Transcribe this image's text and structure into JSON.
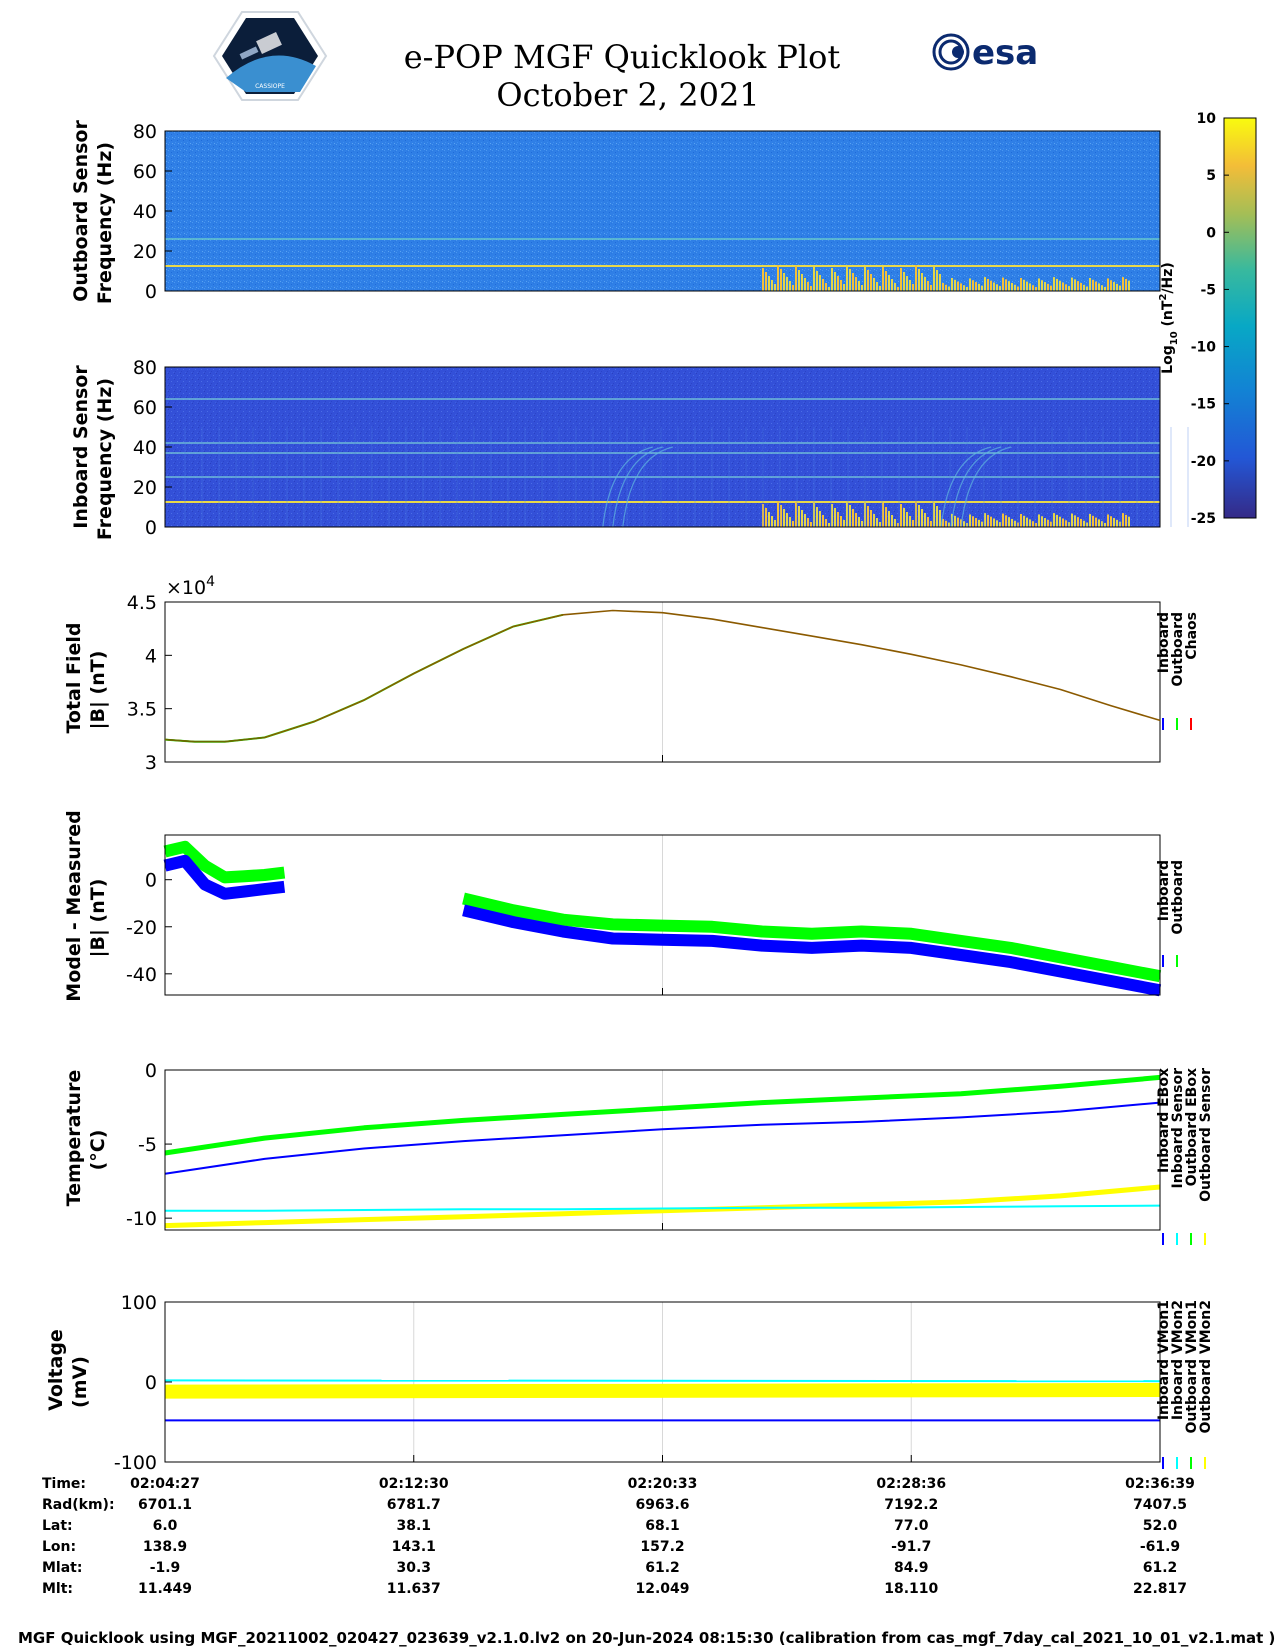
{
  "header": {
    "title_line1": "e-POP MGF Quicklook Plot",
    "title_line2": "October 2, 2021",
    "logo_left_text": "CASSIOPE",
    "logo_right_text": "esa"
  },
  "colors": {
    "blue": "#0000ff",
    "green": "#00ff00",
    "red": "#ff0000",
    "cyan": "#00ffff",
    "yellow": "#ffff00",
    "model_line": "#8b5a00",
    "spectrogram_bg_outboard": "#2f7fe6",
    "spectrogram_bg_inboard": "#3350d8",
    "parula_low": "#352a87",
    "parula_high": "#f9fb0e"
  },
  "chart_data": [
    {
      "type": "heatmap",
      "ylabel_line1": "Outboard Sensor",
      "ylabel_line2": "Frequency (Hz)",
      "ylim": [
        0,
        80
      ],
      "yticks": [
        "0",
        "20",
        "40",
        "60",
        "80"
      ],
      "persistent_lines_hz": [
        12.5,
        26
      ],
      "activity_band_x": [
        0.6,
        0.97
      ]
    },
    {
      "type": "heatmap",
      "ylabel_line1": "Inboard Sensor",
      "ylabel_line2": "Frequency (Hz)",
      "ylim": [
        0,
        80
      ],
      "yticks": [
        "0",
        "20",
        "40",
        "60",
        "80"
      ],
      "persistent_lines_hz": [
        12.5,
        25,
        37,
        42,
        64
      ],
      "activity_band_x": [
        0.6,
        0.97
      ]
    },
    {
      "type": "colorbar",
      "label": "Log",
      "label_sub": "10",
      "label_rest": " (nT",
      "label_sup": "2",
      "label_end": "/Hz)",
      "clim": [
        -25,
        10
      ],
      "ticks": [
        "10",
        "5",
        "0",
        "-5",
        "-10",
        "-15",
        "-20",
        "-25"
      ]
    },
    {
      "type": "line",
      "ylabel_line1": "Total Field",
      "ylabel_line2": "|B| (nT)",
      "exponent_prefix": "×10",
      "exponent": "4",
      "ylim": [
        3.0,
        4.5
      ],
      "yticks": [
        "3",
        "3.5",
        "4",
        "4.5"
      ],
      "legend": [
        "Inboard",
        "Outboard",
        "Chaos"
      ],
      "x": [
        0,
        0.03,
        0.06,
        0.1,
        0.15,
        0.2,
        0.25,
        0.3,
        0.35,
        0.4,
        0.45,
        0.5,
        0.55,
        0.6,
        0.65,
        0.7,
        0.75,
        0.8,
        0.85,
        0.9,
        0.95,
        1.0
      ],
      "series": [
        {
          "name": "Outboard",
          "values": [
            3.21,
            3.19,
            3.19,
            3.23,
            3.38,
            3.58,
            3.83,
            4.06,
            4.27,
            4.38,
            4.42,
            4.4,
            4.34,
            4.26,
            4.18,
            4.1,
            4.01,
            3.91,
            3.8,
            3.68,
            3.53,
            3.39
          ]
        },
        {
          "name": "Chaos",
          "values": [
            3.21,
            3.19,
            3.19,
            3.23,
            3.38,
            3.58,
            3.83,
            4.06,
            4.27,
            4.38,
            4.42,
            4.4,
            4.34,
            4.26,
            4.18,
            4.1,
            4.01,
            3.91,
            3.8,
            3.68,
            3.53,
            3.39
          ]
        }
      ]
    },
    {
      "type": "line",
      "ylabel_line1": "Model - Measured",
      "ylabel_line2": "|B| (nT)",
      "ylim": [
        -49,
        19
      ],
      "yticks": [
        "-40",
        "-20",
        "0"
      ],
      "legend": [
        "Inboard",
        "Outboard"
      ],
      "segments": [
        {
          "x": [
            0,
            0.02,
            0.04,
            0.06,
            0.08,
            0.1,
            0.12
          ],
          "series": [
            {
              "name": "Outboard",
              "values": [
                12,
                14,
                6,
                1,
                1.5,
                2,
                3
              ]
            },
            {
              "name": "Inboard",
              "values": [
                6,
                8,
                -2,
                -6,
                -5,
                -4,
                -3
              ]
            }
          ]
        },
        {
          "x": [
            0.3,
            0.35,
            0.4,
            0.45,
            0.5,
            0.55,
            0.6,
            0.65,
            0.7,
            0.75,
            0.8,
            0.85,
            0.9,
            0.95,
            1.0
          ],
          "series": [
            {
              "name": "Outboard",
              "values": [
                -8,
                -13,
                -17,
                -19,
                -19.5,
                -20,
                -22,
                -23,
                -22,
                -23,
                -26,
                -29,
                -33,
                -37,
                -41
              ]
            },
            {
              "name": "Inboard",
              "values": [
                -13,
                -18,
                -22,
                -25,
                -25.5,
                -26,
                -28,
                -29,
                -28,
                -29,
                -32,
                -35,
                -39,
                -43,
                -47
              ]
            }
          ]
        }
      ]
    },
    {
      "type": "line",
      "ylabel_line1": "Temperature",
      "ylabel_line2": "(°C)",
      "ylim": [
        -10.8,
        0
      ],
      "yticks": [
        "-10",
        "-5",
        "0"
      ],
      "legend": [
        "Inboard EBox",
        "Inboard Sensor",
        "Outboard EBox",
        "Outboard Sensor"
      ],
      "x": [
        0,
        0.1,
        0.2,
        0.3,
        0.4,
        0.5,
        0.6,
        0.7,
        0.8,
        0.9,
        1.0
      ],
      "series": [
        {
          "name": "Outboard EBox",
          "values": [
            -5.6,
            -4.6,
            -3.9,
            -3.4,
            -3.0,
            -2.6,
            -2.2,
            -1.9,
            -1.6,
            -1.1,
            -0.5
          ]
        },
        {
          "name": "Inboard EBox",
          "values": [
            -7.0,
            -6.0,
            -5.3,
            -4.8,
            -4.4,
            -4.0,
            -3.7,
            -3.5,
            -3.2,
            -2.8,
            -2.2
          ]
        },
        {
          "name": "Outboard Sensor",
          "values": [
            -10.5,
            -10.3,
            -10.1,
            -9.9,
            -9.7,
            -9.5,
            -9.3,
            -9.1,
            -8.9,
            -8.5,
            -7.9
          ]
        },
        {
          "name": "Inboard Sensor",
          "values": [
            -9.5,
            -9.5,
            -9.45,
            -9.4,
            -9.4,
            -9.35,
            -9.3,
            -9.3,
            -9.25,
            -9.2,
            -9.15
          ]
        }
      ]
    },
    {
      "type": "line",
      "ylabel_line1": "Voltage",
      "ylabel_line2": "(mV)",
      "ylim": [
        -100,
        100
      ],
      "yticks": [
        "-100",
        "0",
        "100"
      ],
      "legend": [
        "Inboard VMon1",
        "Inboard VMon2",
        "Outboard VMon1",
        "Outboard VMon2"
      ],
      "x": [
        0,
        1.0
      ],
      "series": [
        {
          "name": "Outboard VMon2",
          "values": [
            -12,
            -10
          ]
        },
        {
          "name": "Inboard VMon2",
          "values": [
            2,
            1
          ]
        },
        {
          "name": "Inboard VMon1",
          "values": [
            -48,
            -48
          ]
        }
      ]
    }
  ],
  "orbit_table": {
    "labels": [
      "Time:",
      "Rad(km):",
      "Lat:",
      "Lon:",
      "Mlat:",
      "Mlt:"
    ],
    "columns": [
      [
        "02:04:27",
        "6701.1",
        "6.0",
        "138.9",
        "-1.9",
        "11.449"
      ],
      [
        "02:12:30",
        "6781.7",
        "38.1",
        "143.1",
        "30.3",
        "11.637"
      ],
      [
        "02:20:33",
        "6963.6",
        "68.1",
        "157.2",
        "61.2",
        "12.049"
      ],
      [
        "02:28:36",
        "7192.2",
        "77.0",
        "-91.7",
        "84.9",
        "18.110"
      ],
      [
        "02:36:39",
        "7407.5",
        "52.0",
        "-61.9",
        "61.2",
        "22.817"
      ]
    ]
  },
  "footer": {
    "text": "MGF Quicklook using MGF_20211002_020427_023639_v2.1.0.lv2 on 20-Jun-2024 08:15:30 (calibration from cas_mgf_7day_cal_2021_10_01_v2.1.mat )"
  }
}
